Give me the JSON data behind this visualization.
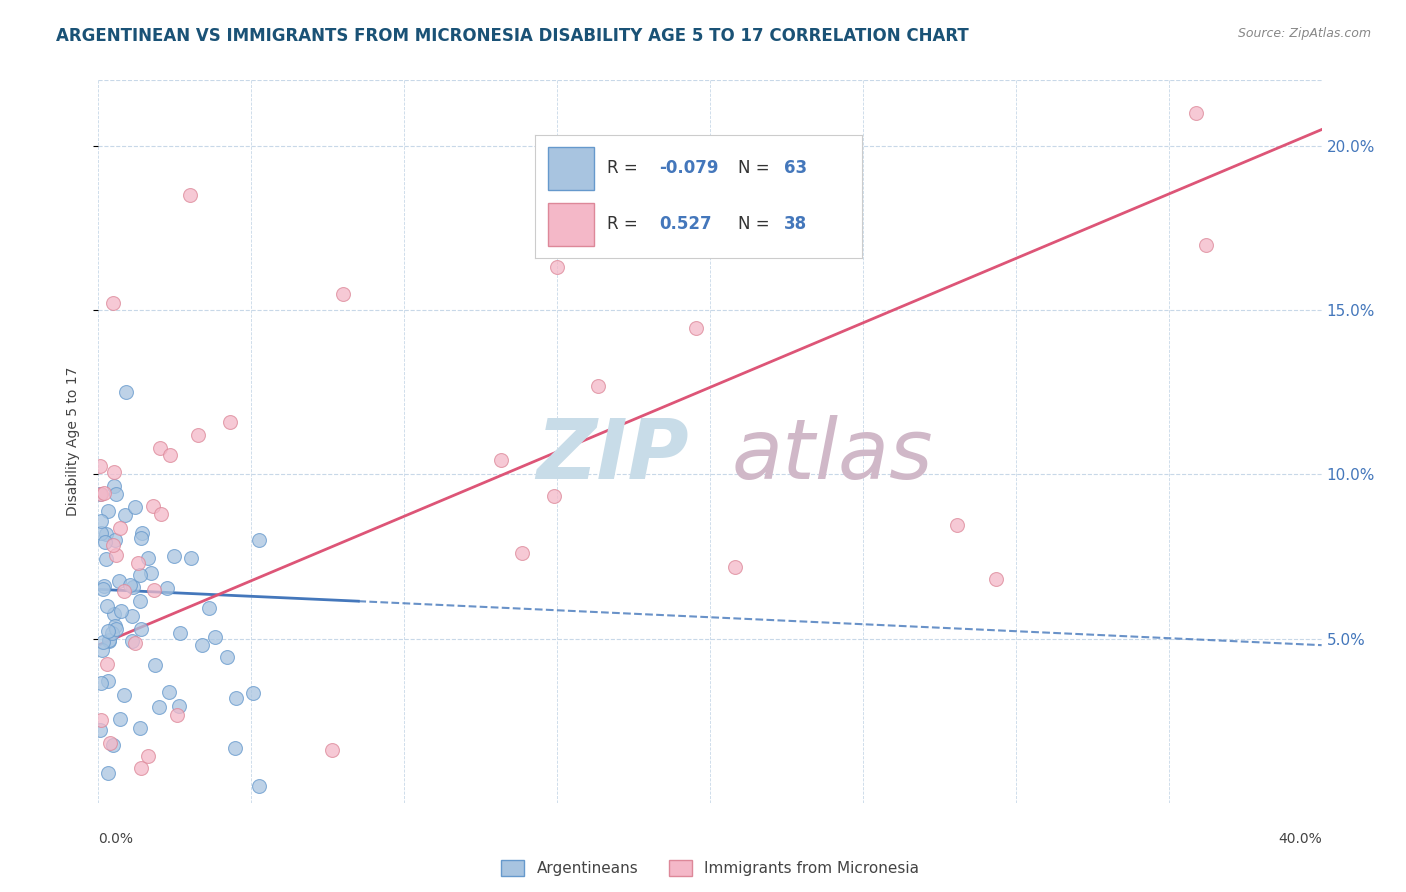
{
  "title": "ARGENTINEAN VS IMMIGRANTS FROM MICRONESIA DISABILITY AGE 5 TO 17 CORRELATION CHART",
  "source": "Source: ZipAtlas.com",
  "ylabel": "Disability Age 5 to 17",
  "xmin": 0.0,
  "xmax": 40.0,
  "ymin": 0.0,
  "ymax": 22.0,
  "yticks": [
    5.0,
    10.0,
    15.0,
    20.0
  ],
  "ytick_labels": [
    "5.0%",
    "10.0%",
    "15.0%",
    "20.0%"
  ],
  "series_arg": {
    "name": "Argentineans",
    "R": -0.079,
    "N": 63,
    "legend_color": "#a8c4e0",
    "marker_facecolor": "#a8c4e0",
    "marker_edgecolor": "#6699cc",
    "trend_color": "#4477bb",
    "trend_solid_end": 8.5
  },
  "series_mic": {
    "name": "Immigrants from Micronesia",
    "R": 0.527,
    "N": 38,
    "legend_color": "#f4b8c8",
    "marker_facecolor": "#f4b8c8",
    "marker_edgecolor": "#dd8899",
    "trend_color": "#dd5577"
  },
  "background_color": "#ffffff",
  "grid_color": "#c8d8e8",
  "title_color": "#1a5276",
  "axis_color": "#4477bb",
  "source_color": "#888888",
  "ylabel_color": "#444444",
  "watermark_zip_color": "#c8dce8",
  "watermark_atlas_color": "#d0b8c8"
}
